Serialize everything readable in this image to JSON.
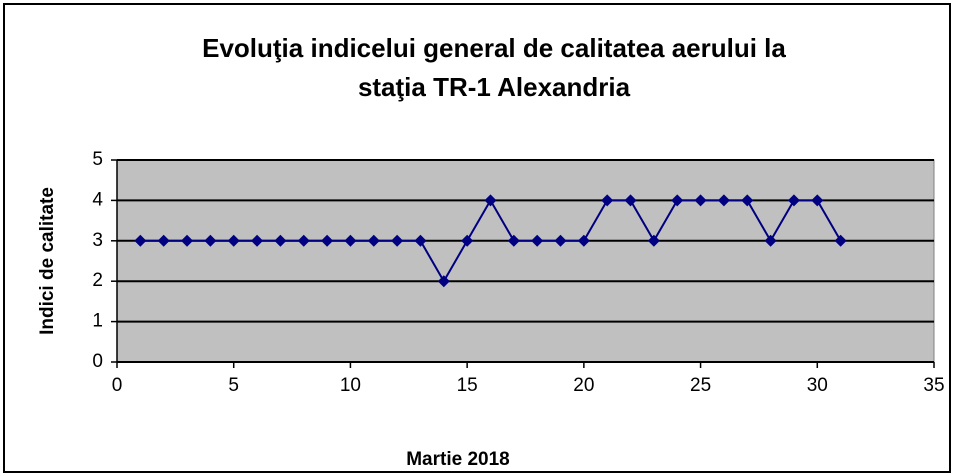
{
  "chart_data": {
    "type": "line",
    "title": [
      "Evoluţia indicelui general de calitatea aerului la",
      "staţia TR-1 Alexandria"
    ],
    "x_label": "Martie 2018",
    "y_label": "Indici de calitate",
    "x": [
      1,
      2,
      3,
      4,
      5,
      6,
      7,
      8,
      9,
      10,
      11,
      12,
      13,
      14,
      15,
      16,
      17,
      18,
      19,
      20,
      21,
      22,
      23,
      24,
      25,
      26,
      27,
      28,
      29,
      30,
      31
    ],
    "series": [
      {
        "color": "#000080",
        "values": [
          3,
          3,
          3,
          3,
          3,
          3,
          3,
          3,
          3,
          3,
          3,
          3,
          3,
          2,
          3,
          4,
          3,
          3,
          3,
          3,
          4,
          4,
          3,
          4,
          4,
          4,
          4,
          3,
          4,
          4,
          3
        ]
      }
    ],
    "xlim": [
      0,
      35
    ],
    "xticks": [
      0,
      5,
      10,
      15,
      20,
      25,
      30,
      35
    ],
    "ylim": [
      0,
      5
    ],
    "yticks": [
      0,
      1,
      2,
      3,
      4,
      5
    ],
    "grid": true,
    "plot_background": "#c0c0c0"
  }
}
